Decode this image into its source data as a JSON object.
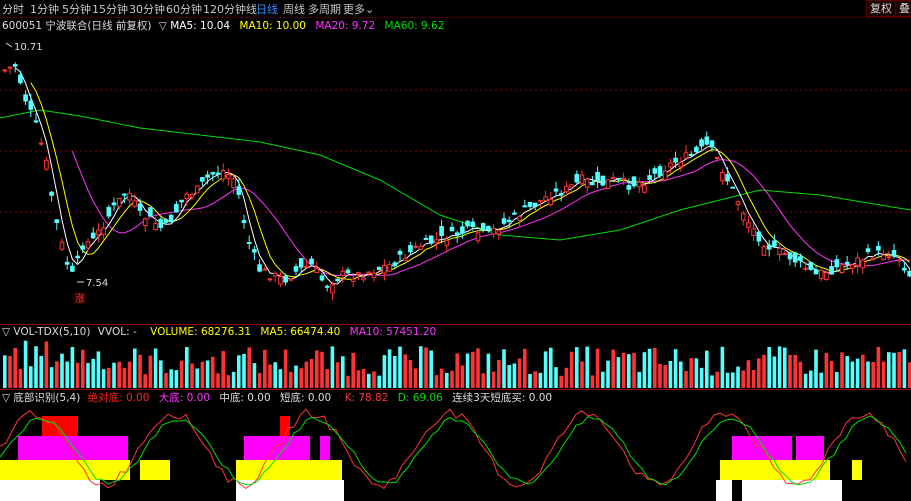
{
  "toolbar": {
    "tabs": [
      {
        "label": "分时",
        "active": false
      },
      {
        "label": "1分钟",
        "active": false
      },
      {
        "label": "5分钟",
        "active": false
      },
      {
        "label": "15分钟",
        "active": false
      },
      {
        "label": "30分钟",
        "active": false
      },
      {
        "label": "60分钟",
        "active": false
      },
      {
        "label": "120分钟线",
        "active": false
      },
      {
        "label": "日线",
        "active": true
      },
      {
        "label": "周线",
        "active": false
      },
      {
        "label": "多周期",
        "active": false
      },
      {
        "label": "更多",
        "active": false
      }
    ],
    "more_arrow": "⌄",
    "buttons": {
      "restore": "复权",
      "overlay": "叠加"
    }
  },
  "main_chart": {
    "stock_label": "600051 宁波联合(日线 前复权)",
    "indicator_marker": "▽",
    "ma_items": [
      {
        "label": "MA5: 10.04",
        "color": "#ffffff"
      },
      {
        "label": "MA10: 10.00",
        "color": "#ffff00"
      },
      {
        "label": "MA20: 9.72",
        "color": "#ff33ff"
      },
      {
        "label": "MA60: 9.62",
        "color": "#00dd00"
      }
    ],
    "high_label": "10.71",
    "low_label": "7.54",
    "rise_badge": "涨"
  },
  "volume_panel": {
    "name": "▽ VOL-TDX(5,10)",
    "vvol": "VVOL: -",
    "items": [
      {
        "label": "VOLUME: 68276.31",
        "color": "#ffff00"
      },
      {
        "label": "MA5: 66474.40",
        "color": "#ffff00"
      },
      {
        "label": "MA10: 57451.20",
        "color": "#ff33ff"
      }
    ]
  },
  "bottom_panel": {
    "name": "▽ 底部识别(5,4)",
    "items": [
      {
        "label": "绝对底: 0.00",
        "color": "#ff2222"
      },
      {
        "label": "大底: 0.00",
        "color": "#ff33ff"
      },
      {
        "label": "中底: 0.00",
        "color": "#dddddd"
      },
      {
        "label": "短底: 0.00",
        "color": "#dddddd"
      },
      {
        "label": "K: 78.82",
        "color": "#ff3333"
      },
      {
        "label": "D: 69.06",
        "color": "#00dd00"
      },
      {
        "label": "连续3天短底买: 0.00",
        "color": "#dddddd"
      }
    ]
  },
  "colors": {
    "up": "#ff3333",
    "down": "#54ffff",
    "ma5": "#ffffff",
    "ma10": "#ffff00",
    "ma20": "#ff33ff",
    "ma60": "#00dd00",
    "grid": "#8a0000"
  }
}
